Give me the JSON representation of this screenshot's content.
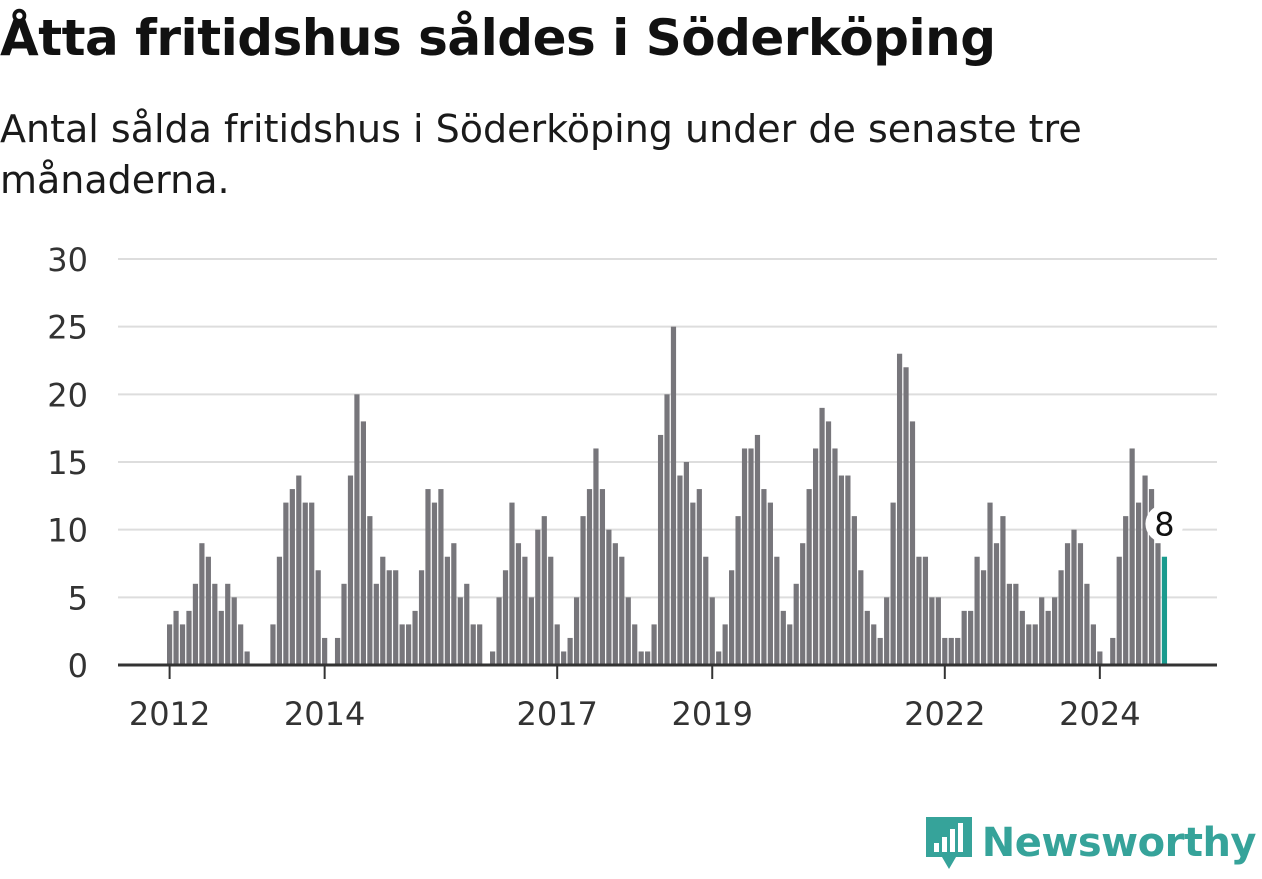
{
  "title": "Åtta fritidshus såldes i Söderköping",
  "subtitle": "Antal sålda fritidshus i Söderköping under de senaste tre månaderna.",
  "brand": {
    "name": "Newsworthy",
    "logo_icon": "bar-chart-logo-icon"
  },
  "colors": {
    "bar": "#77767b",
    "highlight": "#1a9b8e",
    "grid": "#dddddd",
    "axis": "#333333",
    "brand": "#36a39a"
  },
  "chart_data": {
    "type": "bar",
    "ylim": [
      0,
      30
    ],
    "yticks": [
      0,
      5,
      10,
      15,
      20,
      25,
      30
    ],
    "grid": true,
    "x_start": "2012-01",
    "x_interval": "month",
    "xticks": [
      {
        "label": "2012",
        "index": 0
      },
      {
        "label": "2014",
        "index": 24
      },
      {
        "label": "2017",
        "index": 60
      },
      {
        "label": "2019",
        "index": 84
      },
      {
        "label": "2022",
        "index": 120
      },
      {
        "label": "2024",
        "index": 144
      }
    ],
    "values": [
      3,
      4,
      3,
      4,
      6,
      9,
      8,
      6,
      4,
      6,
      5,
      3,
      1,
      0,
      0,
      0,
      3,
      8,
      12,
      13,
      14,
      12,
      12,
      7,
      2,
      0,
      2,
      6,
      14,
      20,
      18,
      11,
      6,
      8,
      7,
      7,
      3,
      3,
      4,
      7,
      13,
      12,
      13,
      8,
      9,
      5,
      6,
      3,
      3,
      0,
      1,
      5,
      7,
      12,
      9,
      8,
      5,
      10,
      11,
      8,
      3,
      1,
      2,
      5,
      11,
      13,
      16,
      13,
      10,
      9,
      8,
      5,
      3,
      1,
      1,
      3,
      17,
      20,
      25,
      14,
      15,
      12,
      13,
      8,
      5,
      1,
      3,
      7,
      11,
      16,
      16,
      17,
      13,
      12,
      8,
      4,
      3,
      6,
      9,
      13,
      16,
      19,
      18,
      16,
      14,
      14,
      11,
      7,
      4,
      3,
      2,
      5,
      12,
      23,
      22,
      18,
      8,
      8,
      5,
      5,
      2,
      2,
      2,
      4,
      4,
      8,
      7,
      12,
      9,
      11,
      6,
      6,
      4,
      3,
      3,
      5,
      4,
      5,
      7,
      9,
      10,
      9,
      6,
      3,
      1,
      0,
      2,
      8,
      11,
      16,
      12,
      14,
      13,
      9,
      8
    ],
    "highlight_label": "8"
  }
}
